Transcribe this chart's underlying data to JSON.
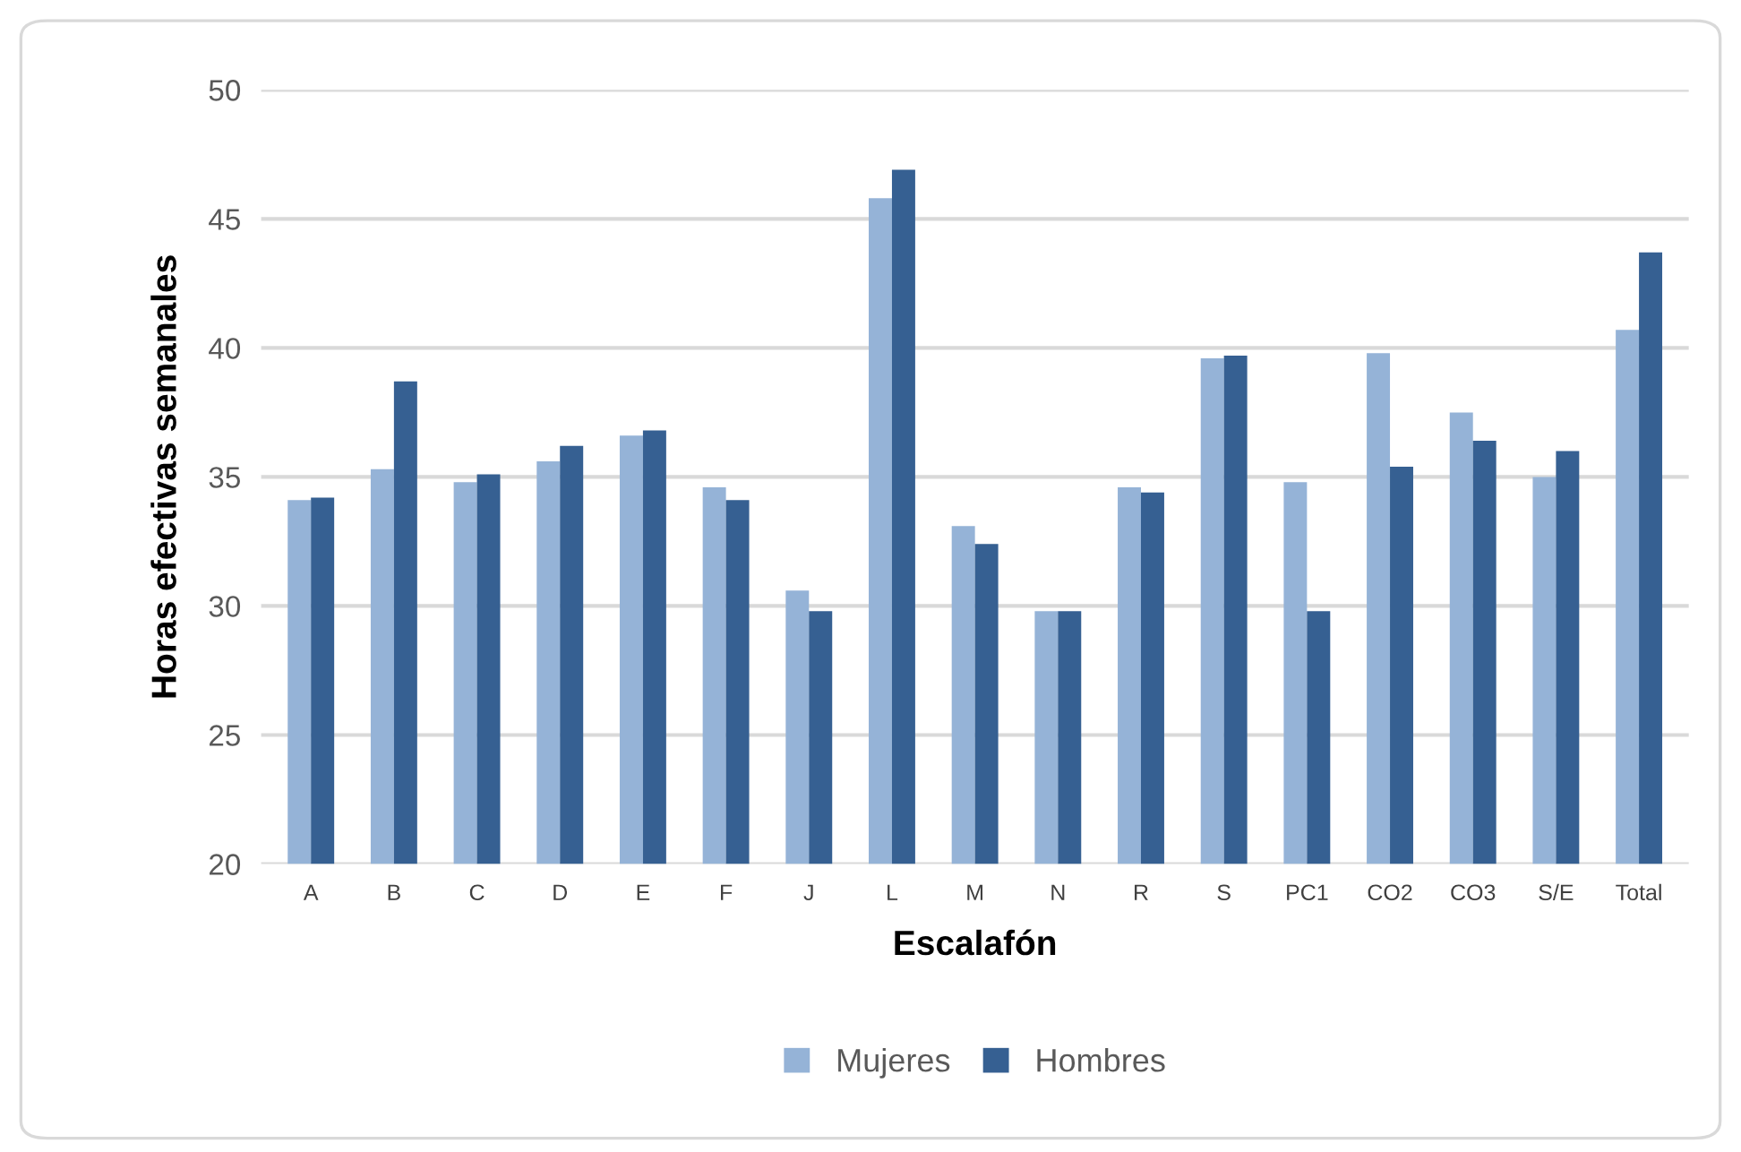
{
  "chart_data": {
    "type": "bar",
    "xlabel": "Escalafón",
    "ylabel": "Horas efectivas semanales",
    "categories": [
      "A",
      "B",
      "C",
      "D",
      "E",
      "F",
      "J",
      "L",
      "M",
      "N",
      "R",
      "S",
      "PC1",
      "CO2",
      "CO3",
      "S/E",
      "Total"
    ],
    "series": [
      {
        "name": "Mujeres",
        "color": "#95b3d7",
        "values": [
          34.1,
          35.3,
          34.8,
          35.6,
          36.6,
          34.6,
          30.6,
          45.8,
          33.1,
          29.8,
          34.6,
          39.6,
          34.8,
          39.8,
          37.5,
          35.0,
          40.7
        ]
      },
      {
        "name": "Hombres",
        "color": "#366092",
        "values": [
          34.2,
          38.7,
          35.1,
          36.2,
          36.8,
          34.1,
          29.8,
          46.9,
          32.4,
          29.8,
          34.4,
          39.7,
          29.8,
          35.4,
          36.4,
          36.0,
          43.7
        ]
      }
    ],
    "ylim": [
      20,
      50
    ],
    "yticks": [
      20,
      25,
      30,
      35,
      40,
      45,
      50
    ],
    "grid": "y",
    "legend": "bottom"
  }
}
